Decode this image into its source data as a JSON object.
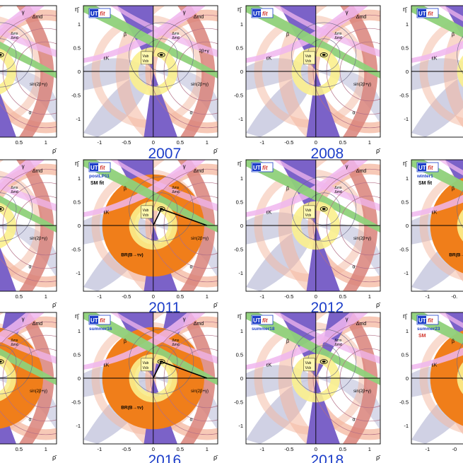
{
  "panels": [
    {
      "year": "",
      "subtitle": "",
      "partial": "left",
      "yticks": [],
      "xticks": [
        "0.5",
        "1"
      ]
    },
    {
      "year": "2007",
      "subtitle": "",
      "partial": "none",
      "yticks": [
        "1",
        "0.5",
        "0",
        "-0.5",
        "-1"
      ],
      "xticks": [
        "-1",
        "-0.5",
        "0",
        "0.5",
        "1"
      ]
    },
    {
      "year": "2008",
      "subtitle": "",
      "partial": "none",
      "yticks": [
        "1",
        "0.5",
        "0",
        "-0.5",
        "-1"
      ],
      "xticks": [
        "-1",
        "-0.5",
        "0",
        "0.5",
        "1"
      ]
    },
    {
      "year": "",
      "subtitle": "",
      "partial": "right",
      "yticks": [
        "1",
        "0.5",
        "0",
        "-0.5",
        "-1"
      ],
      "xticks": []
    },
    {
      "year": "",
      "subtitle": "",
      "partial": "left",
      "yticks": [],
      "xticks": [
        "0.5",
        "1"
      ]
    },
    {
      "year": "2011",
      "subtitle": "postLP11",
      "partial": "none",
      "smfit": "SM fit",
      "yticks": [
        "1",
        "0.5",
        "0",
        "-0.5",
        "-1"
      ],
      "xticks": [
        "-1",
        "-0.5",
        "0",
        "0.5",
        "1"
      ]
    },
    {
      "year": "2012",
      "subtitle": "",
      "partial": "none",
      "yticks": [
        "1",
        "0.5",
        "0",
        "-0.5",
        "-1"
      ],
      "xticks": [
        "-1",
        "-0.5",
        "0",
        "0.5",
        "1"
      ]
    },
    {
      "year": "",
      "subtitle": "winter1",
      "partial": "right",
      "smfit": "SM fit",
      "yticks": [
        "1",
        "0.5",
        "0",
        "-0.5",
        "-1"
      ],
      "xticks": [
        "-1",
        "-0."
      ]
    },
    {
      "year": "",
      "subtitle": "",
      "partial": "left",
      "yticks": [],
      "xticks": [
        "0.5",
        "1"
      ]
    },
    {
      "year": "2016",
      "subtitle": "summer16",
      "partial": "none",
      "yticks": [
        "1",
        "0.5",
        "0",
        "-0.5",
        "-1"
      ],
      "xticks": [
        "-1",
        "-0.5",
        "0",
        "0.5",
        "1"
      ]
    },
    {
      "year": "2018",
      "subtitle": "summer18",
      "partial": "none",
      "yticks": [
        "1",
        "0.5",
        "0",
        "-0.5",
        "-1"
      ],
      "xticks": [
        "-1",
        "-0.5",
        "0",
        "0.5",
        "1"
      ]
    },
    {
      "year": "",
      "subtitle": "summer23",
      "partial": "right",
      "smfit": "SM",
      "yticks": [
        "1",
        "0.5",
        "0",
        "-0.5",
        "-1"
      ],
      "xticks": [
        "-1",
        "-0"
      ]
    }
  ],
  "labels": {
    "logo_ut": "UT",
    "logo_fit": "fit",
    "eta": "η̄",
    "rho": "ρ̄",
    "gamma": "γ",
    "alpha": "α",
    "beta": "β",
    "epsk": "εK",
    "dmd": "Δmd",
    "dms_dmd_num": "Δms",
    "dms_dmd_den": "Δmd",
    "vub_num": "Vub",
    "vub_den": "Vcb",
    "sin2b": "sin(2β+γ)",
    "brtau": "BR(B→τν)",
    "twoBg": "2β+γ"
  },
  "colors": {
    "purple": "#7b62c8",
    "green": "#8fd17a",
    "pink": "#f0b6ee",
    "salmon": "#f4b79f",
    "red": "#d9827a",
    "yellow": "#fbf08d",
    "grayblue": "#c8c9df",
    "orange": "#f07e1a",
    "year_blue": "#1d3ec9"
  }
}
